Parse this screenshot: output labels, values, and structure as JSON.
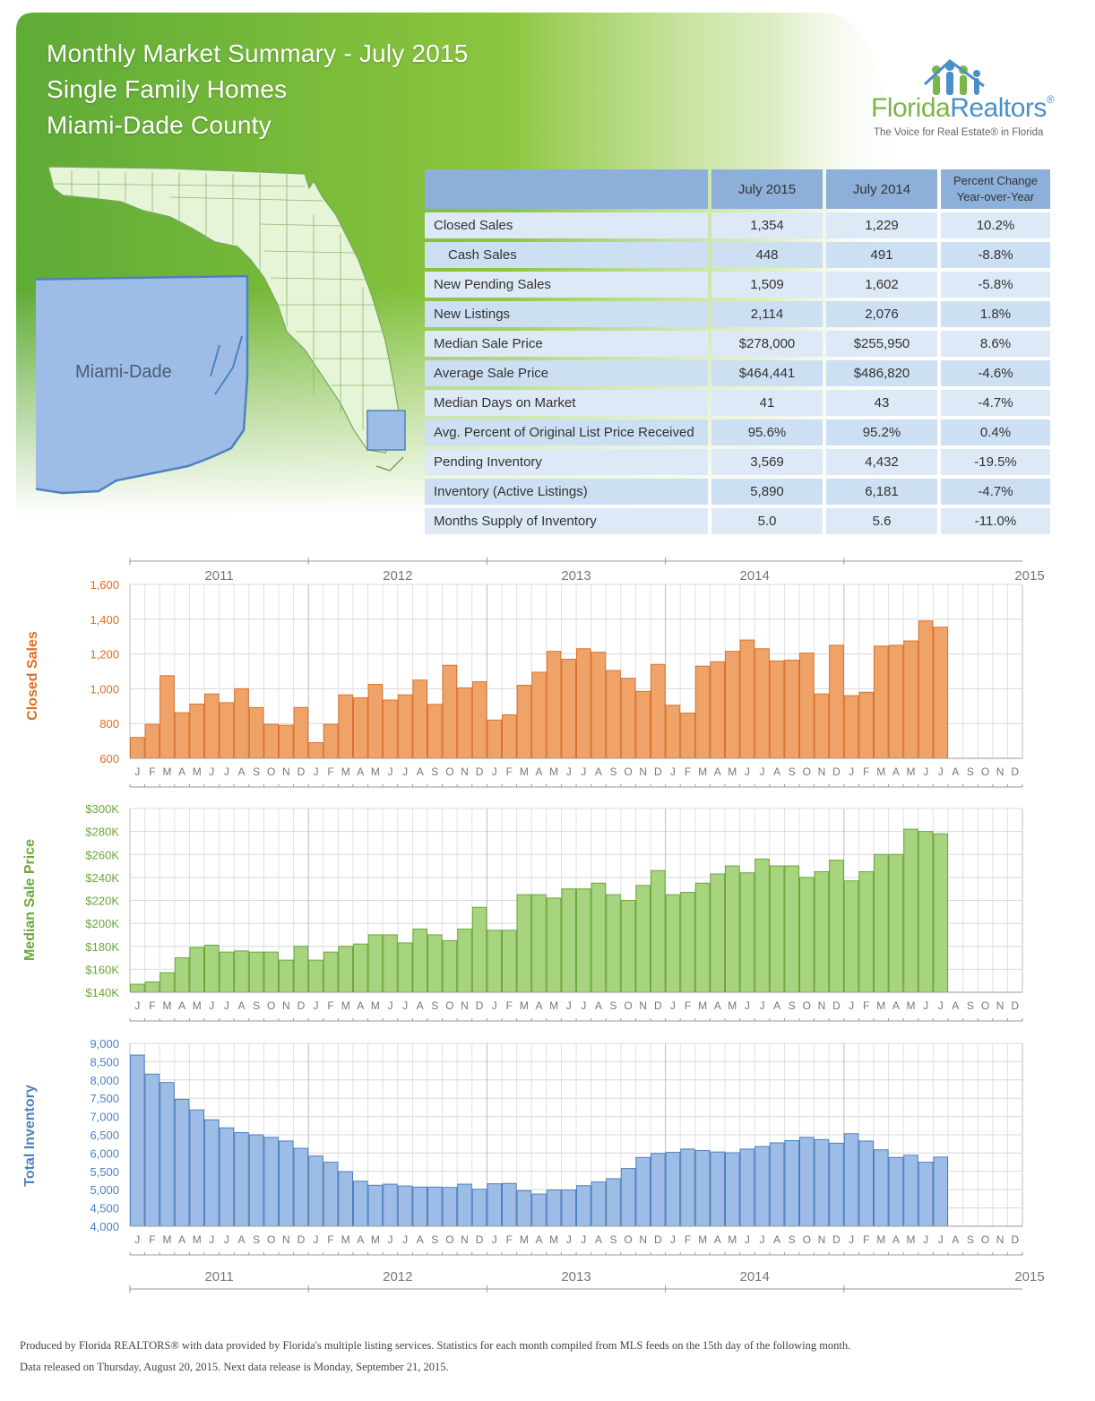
{
  "header": {
    "title_line1": "Monthly Market Summary - July 2015",
    "title_line2": "Single Family Homes",
    "title_line3": "Miami-Dade County"
  },
  "logo": {
    "name_part1": "Florida",
    "name_part2": "Realtors",
    "registered_mark": "®",
    "tagline": "The Voice for Real Estate® in Florida"
  },
  "map": {
    "county_label": "Miami-Dade"
  },
  "summary_table": {
    "columns": [
      "July 2015",
      "July 2014",
      "Percent Change Year-over-Year"
    ],
    "rows": [
      {
        "label": "Closed Sales",
        "cur": "1,354",
        "prev": "1,229",
        "pct": "10.2%"
      },
      {
        "label": "Cash Sales",
        "cur": "448",
        "prev": "491",
        "pct": "-8.8%"
      },
      {
        "label": "New Pending Sales",
        "cur": "1,509",
        "prev": "1,602",
        "pct": "-5.8%"
      },
      {
        "label": "New Listings",
        "cur": "2,114",
        "prev": "2,076",
        "pct": "1.8%"
      },
      {
        "label": "Median Sale Price",
        "cur": "$278,000",
        "prev": "$255,950",
        "pct": "8.6%"
      },
      {
        "label": "Average Sale Price",
        "cur": "$464,441",
        "prev": "$486,820",
        "pct": "-4.6%"
      },
      {
        "label": "Median Days on Market",
        "cur": "41",
        "prev": "43",
        "pct": "-4.7%"
      },
      {
        "label": "Avg. Percent of Original List Price Received",
        "cur": "95.6%",
        "prev": "95.2%",
        "pct": "0.4%"
      },
      {
        "label": "Pending Inventory",
        "cur": "3,569",
        "prev": "4,432",
        "pct": "-19.5%"
      },
      {
        "label": "Inventory (Active Listings)",
        "cur": "5,890",
        "prev": "6,181",
        "pct": "-4.7%"
      },
      {
        "label": "Months Supply of Inventory",
        "cur": "5.0",
        "prev": "5.6",
        "pct": "-11.0%"
      }
    ]
  },
  "colors": {
    "banner_green": "#6cb33f",
    "closed_sales": "#f0a368",
    "closed_sales_stroke": "#d9722e",
    "closed_sales_label": "#e06c20",
    "median_price": "#a8d37f",
    "median_price_stroke": "#6aa83a",
    "median_price_label": "#6aa83a",
    "inventory": "#9dbde6",
    "inventory_stroke": "#4e81c0",
    "inventory_label": "#4e81c0",
    "table_header": "#8cb0d9"
  },
  "chart_data": [
    {
      "type": "bar",
      "name": "closed-sales",
      "ylabel": "Closed Sales",
      "ylim": [
        600,
        1600
      ],
      "yticks": [
        600,
        800,
        1000,
        1200,
        1400,
        1600
      ],
      "ytick_labels": [
        "600",
        "800",
        "1,000",
        "1,200",
        "1,400",
        "1,600"
      ],
      "years": [
        "2011",
        "2012",
        "2013",
        "2014",
        "2015"
      ],
      "month_letters": [
        "J",
        "F",
        "M",
        "A",
        "M",
        "J",
        "J",
        "A",
        "S",
        "O",
        "N",
        "D"
      ],
      "values": [
        720,
        795,
        1075,
        862,
        912,
        970,
        920,
        1000,
        892,
        795,
        790,
        892,
        690,
        795,
        965,
        948,
        1025,
        935,
        965,
        1050,
        910,
        1135,
        1005,
        1040,
        820,
        850,
        1020,
        1095,
        1215,
        1170,
        1230,
        1210,
        1105,
        1060,
        985,
        1140,
        905,
        860,
        1130,
        1155,
        1215,
        1280,
        1230,
        1160,
        1165,
        1205,
        970,
        1250,
        960,
        980,
        1245,
        1250,
        1275,
        1390,
        1354
      ]
    },
    {
      "type": "bar",
      "name": "median-sale-price",
      "ylabel": "Median Sale Price",
      "ylim": [
        140000,
        300000
      ],
      "yticks": [
        140000,
        160000,
        180000,
        200000,
        220000,
        240000,
        260000,
        280000,
        300000
      ],
      "ytick_labels": [
        "$140K",
        "$160K",
        "$180K",
        "$200K",
        "$220K",
        "$240K",
        "$260K",
        "$280K",
        "$300K"
      ],
      "years": [
        "2011",
        "2012",
        "2013",
        "2014",
        "2015"
      ],
      "month_letters": [
        "J",
        "F",
        "M",
        "A",
        "M",
        "J",
        "J",
        "A",
        "S",
        "O",
        "N",
        "D"
      ],
      "values": [
        147000,
        149000,
        157000,
        170000,
        179000,
        181000,
        175000,
        176000,
        175000,
        175000,
        168000,
        180000,
        168000,
        175000,
        180000,
        182000,
        190000,
        190000,
        183000,
        195000,
        190000,
        185000,
        195000,
        214000,
        194000,
        194000,
        225000,
        225000,
        222000,
        230000,
        230000,
        235000,
        225000,
        220000,
        233000,
        246000,
        225000,
        227000,
        235000,
        243000,
        250000,
        244000,
        256000,
        250000,
        250000,
        240000,
        245000,
        255000,
        237000,
        245000,
        260000,
        260000,
        282000,
        280000,
        278000
      ]
    },
    {
      "type": "bar",
      "name": "total-inventory",
      "ylabel": "Total Inventory",
      "ylim": [
        4000,
        9000
      ],
      "yticks": [
        4000,
        4500,
        5000,
        5500,
        6000,
        6500,
        7000,
        7500,
        8000,
        8500,
        9000
      ],
      "ytick_labels": [
        "4,000",
        "4,500",
        "5,000",
        "5,500",
        "6,000",
        "6,500",
        "7,000",
        "7,500",
        "8,000",
        "8,500",
        "9,000"
      ],
      "years": [
        "2011",
        "2012",
        "2013",
        "2014",
        "2015"
      ],
      "month_letters": [
        "J",
        "F",
        "M",
        "A",
        "M",
        "J",
        "J",
        "A",
        "S",
        "O",
        "N",
        "D"
      ],
      "values": [
        8680,
        8160,
        7930,
        7470,
        7180,
        6910,
        6690,
        6560,
        6500,
        6430,
        6330,
        6130,
        5920,
        5750,
        5490,
        5230,
        5120,
        5150,
        5100,
        5070,
        5070,
        5060,
        5150,
        5010,
        5160,
        5170,
        4970,
        4880,
        4990,
        4990,
        5110,
        5210,
        5300,
        5580,
        5880,
        5990,
        6020,
        6110,
        6070,
        6030,
        6010,
        6110,
        6180,
        6280,
        6340,
        6430,
        6370,
        6270,
        6530,
        6330,
        6090,
        5880,
        5940,
        5750,
        5890
      ]
    }
  ],
  "footer": {
    "line1": "Produced by Florida REALTORS® with data provided by Florida's multiple listing services. Statistics for each month compiled from MLS feeds on the 15th day of the following month.",
    "line2": "Data released on Thursday, August 20, 2015. Next data release is Monday, September 21, 2015."
  }
}
